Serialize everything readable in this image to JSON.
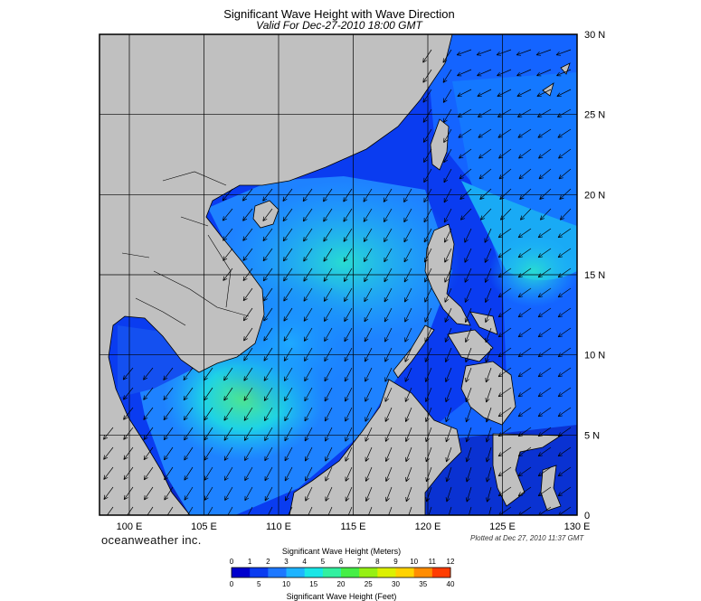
{
  "title": "Significant Wave Height with Wave Direction",
  "subtitle": "Valid For Dec-27-2010 18:00 GMT",
  "brand": "oceanweather inc.",
  "plotted": "Plotted at Dec 27, 2010 11:37 GMT",
  "axes": {
    "lon_labels": [
      "100 E",
      "105 E",
      "110 E",
      "115 E",
      "120 E",
      "125 E",
      "130 E"
    ],
    "lon_values": [
      100,
      105,
      110,
      115,
      120,
      125,
      130
    ],
    "lat_labels": [
      "30 N",
      "25 N",
      "20 N",
      "15 N",
      "10 N",
      "5 N",
      "0"
    ],
    "lat_values": [
      30,
      25,
      20,
      15,
      10,
      5,
      0
    ]
  },
  "extent": {
    "lon": [
      98,
      130
    ],
    "lat": [
      0,
      30
    ]
  },
  "colorbar": {
    "meters_label": "Significant Wave Height (Meters)",
    "feet_label": "Significant Wave Height (Feet)",
    "meters_ticks": [
      "0",
      "1",
      "2",
      "3",
      "4",
      "5",
      "6",
      "7",
      "8",
      "9",
      "10",
      "11",
      "12"
    ],
    "feet_ticks": [
      "0",
      "5",
      "10",
      "15",
      "20",
      "25",
      "30",
      "35",
      "40"
    ],
    "colors": [
      "#0000cd",
      "#0a3cf0",
      "#1e78ff",
      "#1eb4ff",
      "#19e6e6",
      "#32f0a0",
      "#46ee46",
      "#96f014",
      "#dcf000",
      "#ffd200",
      "#ff8c00",
      "#ff3c00"
    ]
  },
  "colors": {
    "land": "#c0c0c0",
    "deep_ocean": "#0a28d2",
    "grid": "#000000"
  }
}
